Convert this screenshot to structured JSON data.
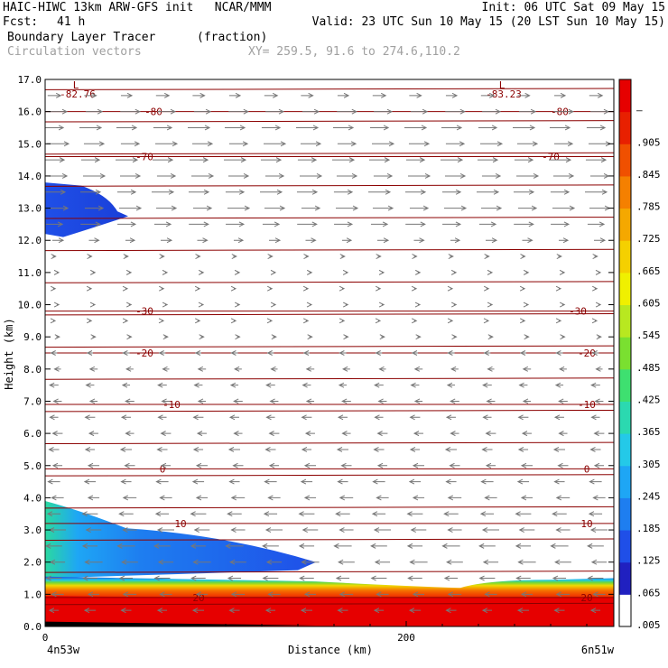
{
  "header": {
    "title": "HAIC-HIWC 13km ARW-GFS init   NCAR/MMM",
    "init": "Init: 06 UTC Sat 09 May 15",
    "fcst_label": "Fcst:",
    "fcst_value": "41 h",
    "valid": "Valid: 23 UTC Sun 10 May 15 (20 LST Sun 10 May 15)",
    "field": "Boundary Layer Tracer",
    "field_unit": "(fraction)",
    "vectors": "Circulation vectors",
    "xy": "XY= 259.5, 91.6 to 274.6,110.2"
  },
  "colors": {
    "contour": "#8b0000",
    "vector": "#777777",
    "shade_scale": [
      "#ffffff",
      "#2020c0",
      "#1f4fe8",
      "#1e7ef0",
      "#1ea6f5",
      "#24c9e8",
      "#2bd9b0",
      "#3ee070",
      "#7ae030",
      "#b8e820",
      "#f0f000",
      "#f5d000",
      "#f5a800",
      "#f58000",
      "#f05000",
      "#e82000",
      "#e60000"
    ]
  },
  "chart_data": {
    "type": "heatmap",
    "ylabel": "Height (km)",
    "xlabel": "Distance (km)",
    "x_left_label": "4n53w",
    "x_right_label": "6n51w",
    "xlim": [
      0,
      315
    ],
    "ylim": [
      0,
      17
    ],
    "x_ticks": [
      "0",
      "200"
    ],
    "x_tick_values": [
      0,
      200
    ],
    "y_ticks": [
      "0.0",
      "1.0",
      "2.0",
      "3.0",
      "4.0",
      "5.0",
      "6.0",
      "7.0",
      "8.0",
      "9.0",
      "10.0",
      "11.0",
      "12.0",
      "13.0",
      "14.0",
      "15.0",
      "16.0",
      "17.0"
    ],
    "colorbar_labels": [
      ".005",
      ".065",
      ".125",
      ".185",
      ".245",
      ".305",
      ".365",
      ".425",
      ".485",
      ".545",
      ".605",
      ".665",
      ".725",
      ".785",
      ".845",
      ".905",
      "—"
    ],
    "temperature_contours": [
      {
        "label": "-80",
        "y": 16.0,
        "label_x": [
          60,
          285
        ]
      },
      {
        "label": "-70",
        "y": 14.6,
        "label_x": [
          55,
          280
        ]
      },
      {
        "label": "-30",
        "y": 9.8,
        "label_x": [
          55,
          295
        ]
      },
      {
        "label": "-20",
        "y": 8.5,
        "label_x": [
          55,
          300
        ]
      },
      {
        "label": "-10",
        "y": 6.9,
        "label_x": [
          70,
          300
        ]
      },
      {
        "label": "0",
        "y": 4.9,
        "label_x": [
          65,
          300
        ]
      },
      {
        "label": "10",
        "y": 3.2,
        "label_x": [
          75,
          300
        ]
      },
      {
        "label": "20",
        "y": 0.9,
        "label_x": [
          85,
          300
        ]
      }
    ],
    "minima": [
      {
        "label": "L",
        "value": "-82.76",
        "x": 17,
        "y": 17
      },
      {
        "label": "L",
        "value": "-83.23",
        "x": 253,
        "y": 17
      }
    ],
    "tracer_regions": [
      {
        "name": "upper plume",
        "x_range": [
          0,
          46
        ],
        "y_range": [
          12.1,
          13.8
        ],
        "max_value": 0.2
      },
      {
        "name": "boundary layer",
        "x_range": [
          0,
          315
        ],
        "y_range": [
          0,
          1.5
        ],
        "max_value": 1.0
      },
      {
        "name": "lifted layer",
        "x_range": [
          0,
          150
        ],
        "y_range": [
          1.6,
          3.9
        ],
        "max_value": 0.3
      }
    ],
    "vector_levels_km": [
      16.5,
      16.0,
      15.5,
      15.0,
      14.5,
      14.0,
      13.5,
      13.0,
      12.5,
      12.0,
      11.5,
      11.0,
      10.5,
      10.0,
      9.5,
      9.0,
      8.5,
      8.0,
      7.5,
      7.0,
      6.5,
      6.0,
      5.5,
      5.0,
      4.5,
      4.0,
      3.5,
      3.0,
      2.5,
      2.0,
      1.5,
      1.0,
      0.5
    ],
    "vector_u": [
      0.6,
      0.9,
      1.0,
      1.0,
      1.0,
      1.0,
      1.0,
      1.0,
      0.9,
      0.5,
      0.15,
      0.1,
      0.1,
      0.1,
      0.1,
      0.15,
      -0.3,
      -0.35,
      -0.4,
      -0.4,
      -0.45,
      -0.45,
      -0.5,
      -0.5,
      -0.55,
      -0.6,
      -0.7,
      -0.75,
      -0.8,
      -0.8,
      -0.7,
      -0.6,
      -0.5
    ],
    "vector_x_km": [
      5,
      25,
      45,
      65,
      85,
      105,
      125,
      145,
      165,
      185,
      205,
      225,
      245,
      265,
      285,
      305
    ]
  }
}
